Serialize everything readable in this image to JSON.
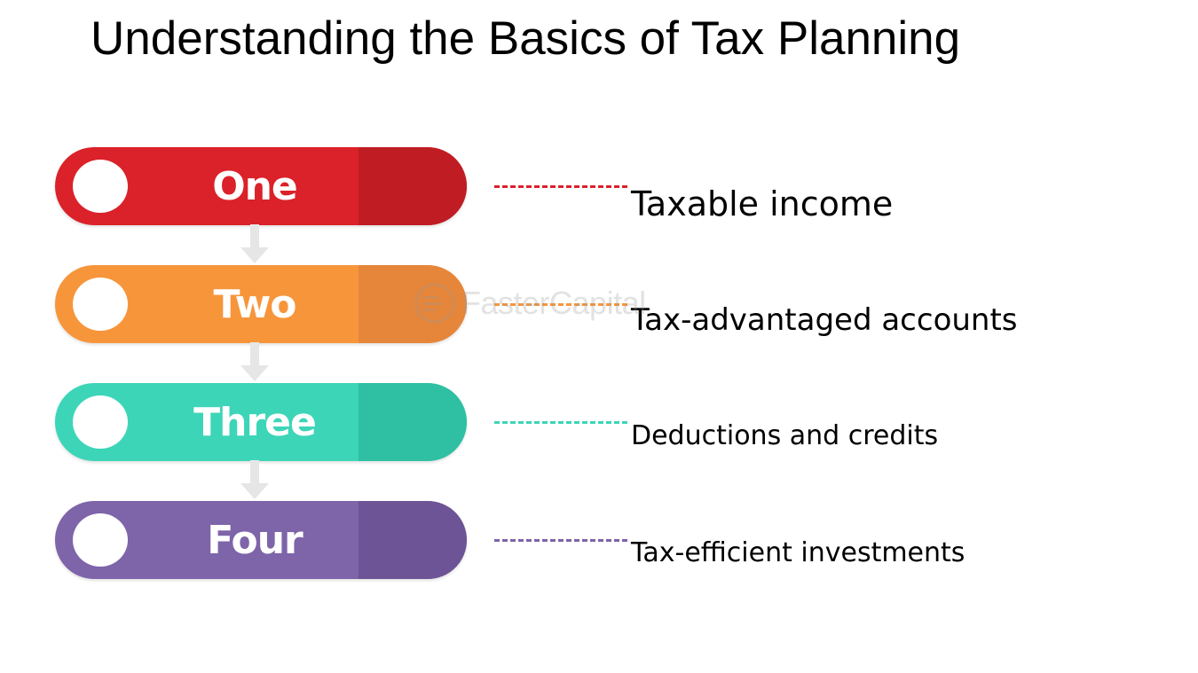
{
  "title": "Understanding the Basics of Tax Planning",
  "watermark": "FasterCapital",
  "steps": [
    {
      "name": "One",
      "color": "#db2129",
      "shade": "#c01c24",
      "label": "Taxable income"
    },
    {
      "name": "Two",
      "color": "#f7953b",
      "shade": "#e6863a",
      "label": "Tax-advantaged accounts"
    },
    {
      "name": "Three",
      "color": "#3dd5b8",
      "shade": "#2fbfa3",
      "label": "Deductions and credits"
    },
    {
      "name": "Four",
      "color": "#7e64a8",
      "shade": "#6c5496",
      "label": "Tax-efficient investments"
    }
  ],
  "connector_color": "#e6e6e6"
}
